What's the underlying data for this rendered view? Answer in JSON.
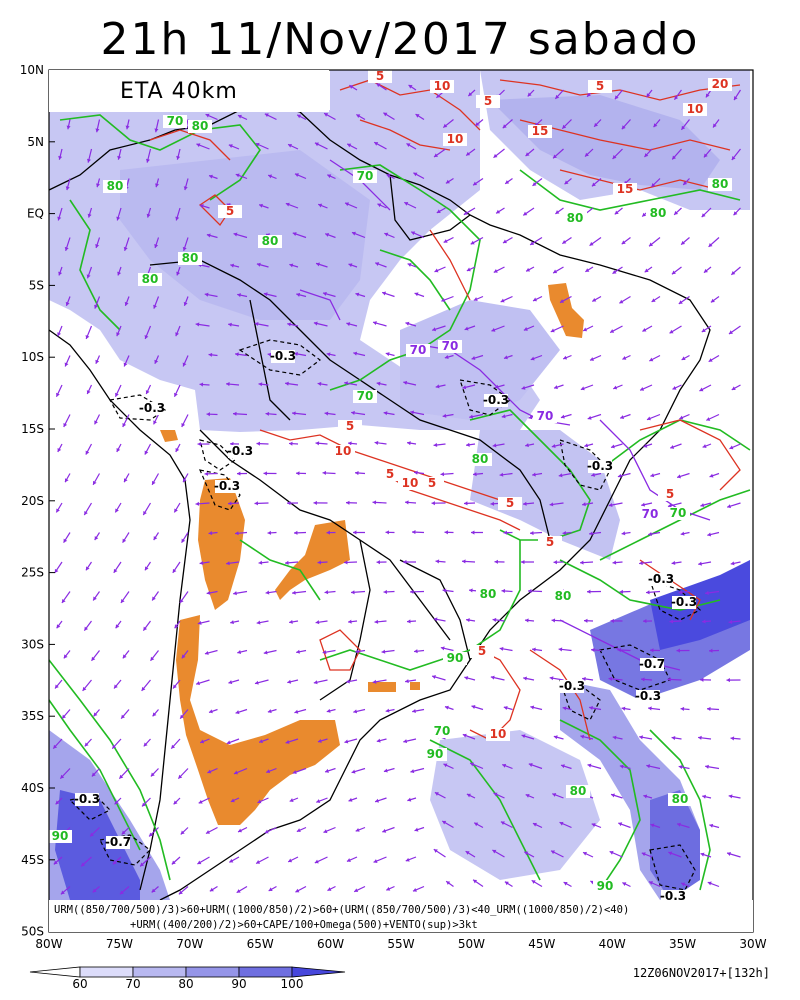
{
  "title": "21h 11/Nov/2017 sabado",
  "model": "ETA 40km",
  "run_info": "12Z06NOV2017+[132h]",
  "condition_line_1": "URM((850/700/500)/3)>60+URM((1000/850)/2)>60+(URM((850/700/500)/3)<40_URM((1000/850)/2)<40)",
  "condition_line_2": "+URM((400/200)/2)>60+CAPE/100+Omega(500)+VENTO(sup)>3kt",
  "axes": {
    "lat_labels": [
      "10N",
      "5N",
      "EQ",
      "5S",
      "10S",
      "15S",
      "20S",
      "25S",
      "30S",
      "35S",
      "40S",
      "45S",
      "50S"
    ],
    "lon_labels": [
      "80W",
      "75W",
      "70W",
      "65W",
      "60W",
      "55W",
      "50W",
      "45W",
      "40W",
      "35W",
      "30W"
    ]
  },
  "colorbar": {
    "labels": [
      "60",
      "70",
      "80",
      "90",
      "100"
    ],
    "colors": [
      "#ffffff",
      "#dcdcfa",
      "#b8b8f0",
      "#9595e8",
      "#6f6fe0",
      "#4747dc"
    ]
  },
  "contour_labels": {
    "rh_green": [
      "70",
      "80",
      "80",
      "80",
      "70",
      "80",
      "80",
      "70",
      "70",
      "80",
      "80",
      "80",
      "80",
      "80",
      "80",
      "90",
      "90",
      "70",
      "80",
      "90",
      "90",
      "80",
      "70",
      "80"
    ],
    "cape_red": [
      "5",
      "10",
      "5",
      "10",
      "15",
      "15",
      "20",
      "10",
      "5",
      "5",
      "5",
      "10",
      "5",
      "5",
      "5",
      "5",
      "10",
      "5",
      "10",
      "5"
    ],
    "omega_purple": [
      "70",
      "70",
      "70",
      "70"
    ],
    "omega_black": [
      "-0.3",
      "-0.3",
      "-0.3",
      "-0.3",
      "-0.3",
      "-0.3",
      "-0.3",
      "-0.3",
      "-0.3",
      "-0.3",
      "-0.3",
      "-0.7",
      "-0.7",
      "-0.3"
    ]
  },
  "colors": {
    "green_contour": "#22bb22",
    "red_contour": "#dd3322",
    "purple": "#8a2be2",
    "orange": "#e98a2e",
    "blue_shade": "#b8b8f0"
  }
}
